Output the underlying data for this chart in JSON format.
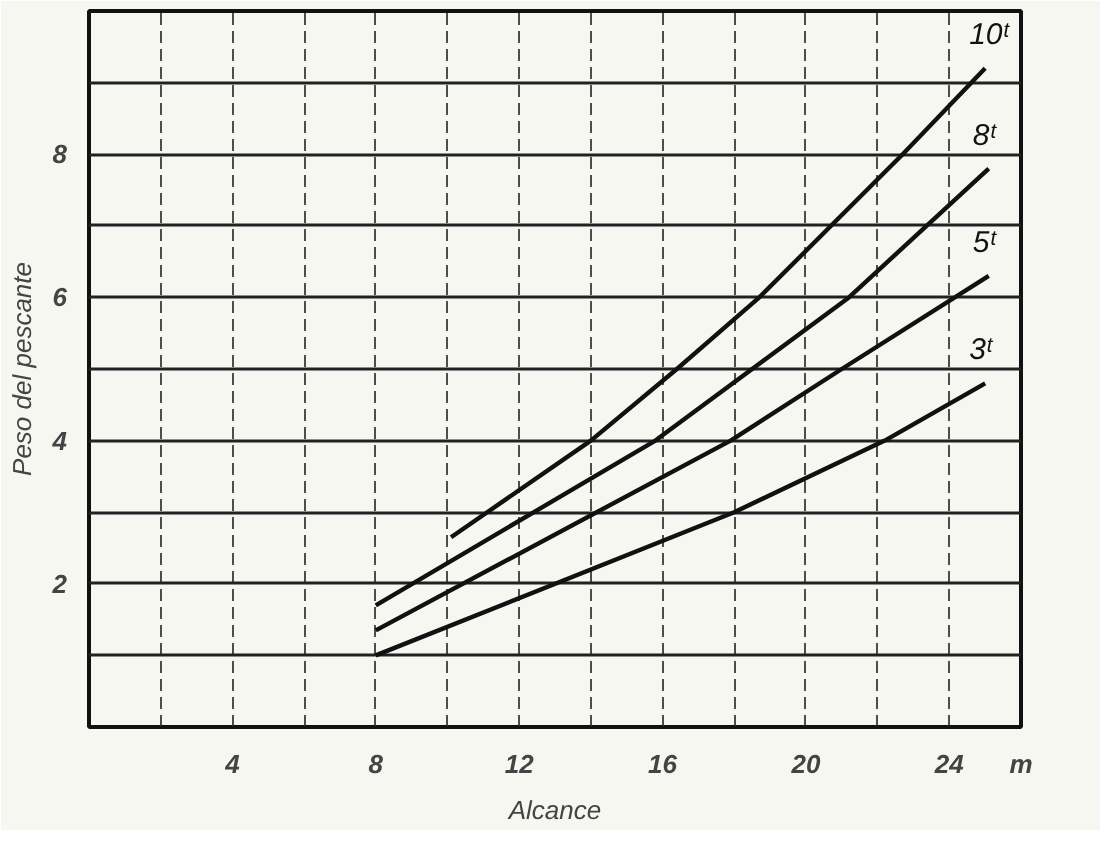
{
  "chart_data": {
    "type": "line",
    "xlabel": "Alcance",
    "ylabel": "Peso del pescante",
    "xlim": [
      0,
      26
    ],
    "ylim": [
      0,
      10
    ],
    "xticks": [
      {
        "value": 2,
        "label": null
      },
      4,
      {
        "value": 6,
        "label": null
      },
      8,
      {
        "value": 10,
        "label": null
      },
      12,
      {
        "value": 14,
        "label": null
      },
      16,
      {
        "value": 18,
        "label": null
      },
      20,
      {
        "value": 22,
        "label": null
      },
      24
    ],
    "yticks": [
      {
        "value": 1,
        "label": null
      },
      2,
      {
        "value": 3,
        "label": null
      },
      4,
      {
        "value": 5,
        "label": null
      },
      6,
      {
        "value": 7,
        "label": null
      },
      8,
      {
        "value": 9,
        "label": null
      }
    ],
    "grid": true,
    "marker": "none",
    "line_style": "solid",
    "annotations": [
      "m"
    ],
    "series": [
      {
        "name": "10ᵗ",
        "color": "#111111",
        "x": [
          10.1,
          14,
          16.4,
          18.7,
          22.7,
          25
        ],
        "values": [
          2.65,
          4,
          5,
          6,
          8,
          9.2
        ]
      },
      {
        "name": "8ᵗ",
        "color": "#111111",
        "x": [
          8,
          15.8,
          21.2,
          25.1
        ],
        "values": [
          1.7,
          4,
          6,
          7.8
        ]
      },
      {
        "name": "5ᵗ",
        "color": "#111111",
        "x": [
          8,
          17.9,
          21,
          25.1
        ],
        "values": [
          1.35,
          4,
          5,
          6.3
        ]
      },
      {
        "name": "3ᵗ",
        "color": "#111111",
        "x": [
          8,
          18,
          22.2,
          25
        ],
        "values": [
          1,
          3,
          4,
          4.8
        ]
      }
    ]
  }
}
